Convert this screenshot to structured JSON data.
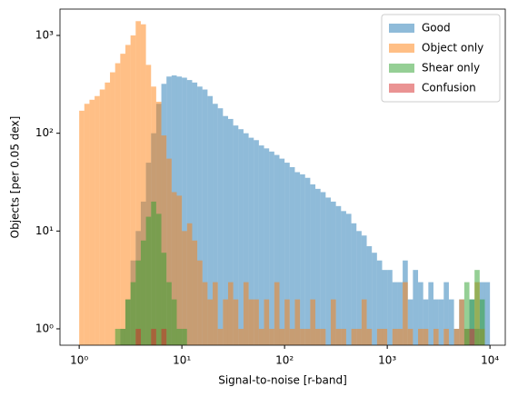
{
  "chart_data": {
    "type": "histogram",
    "xlabel": "Signal-to-noise [r-band]",
    "ylabel": "Objects [per 0.05 dex]",
    "xscale": "log",
    "yscale": "log",
    "xlim": [
      0.65,
      14100
    ],
    "ylim": [
      0.68,
      1860
    ],
    "xticks": [
      {
        "value": 1,
        "label": "10⁰"
      },
      {
        "value": 10,
        "label": "10¹"
      },
      {
        "value": 100,
        "label": "10²"
      },
      {
        "value": 1000,
        "label": "10³"
      },
      {
        "value": 10000,
        "label": "10⁴"
      }
    ],
    "yticks": [
      {
        "value": 1,
        "label": "10⁰"
      },
      {
        "value": 10,
        "label": "10¹"
      },
      {
        "value": 100,
        "label": "10²"
      },
      {
        "value": 1000,
        "label": "10³"
      }
    ],
    "legend": "upper right",
    "opacity": 0.5,
    "bins": [
      1,
      1.122,
      1.259,
      1.413,
      1.585,
      1.778,
      1.995,
      2.239,
      2.512,
      2.818,
      3.162,
      3.548,
      3.981,
      4.467,
      5.012,
      5.623,
      6.31,
      7.079,
      7.943,
      8.913,
      10,
      11.22,
      12.59,
      14.13,
      15.85,
      17.78,
      19.95,
      22.39,
      25.12,
      28.18,
      31.62,
      35.48,
      39.81,
      44.67,
      50.12,
      56.23,
      63.1,
      70.79,
      79.43,
      89.13,
      100,
      112.2,
      125.9,
      141.3,
      158.5,
      177.8,
      199.5,
      223.9,
      251.2,
      281.8,
      316.2,
      354.8,
      398.1,
      446.7,
      501.2,
      562.3,
      631,
      707.9,
      794.3,
      891.3,
      1000,
      1122,
      1259,
      1413,
      1585,
      1778,
      1995,
      2239,
      2512,
      2818,
      3162,
      3548,
      3981,
      4467,
      5012,
      5623,
      6310,
      7079,
      7943,
      8913,
      10000
    ],
    "series": [
      {
        "name": "Good",
        "color": "#1f77b4",
        "values": [
          0,
          0,
          0,
          0,
          0,
          0,
          0,
          0,
          1,
          2,
          5,
          10,
          20,
          50,
          100,
          200,
          320,
          380,
          390,
          380,
          370,
          350,
          330,
          300,
          280,
          240,
          200,
          180,
          150,
          140,
          120,
          110,
          100,
          90,
          85,
          75,
          70,
          65,
          60,
          55,
          50,
          45,
          40,
          38,
          35,
          30,
          27,
          25,
          22,
          20,
          18,
          16,
          15,
          12,
          10,
          9,
          7,
          6,
          5,
          4,
          4,
          3,
          3,
          5,
          2,
          4,
          3,
          2,
          3,
          2,
          2,
          3,
          2,
          1,
          2,
          1,
          2,
          1,
          3,
          3
        ]
      },
      {
        "name": "Object only",
        "color": "#ff7f0e",
        "values": [
          170,
          200,
          220,
          240,
          280,
          330,
          420,
          520,
          650,
          800,
          1000,
          1400,
          1300,
          500,
          300,
          210,
          95,
          55,
          25,
          23,
          10,
          12,
          8,
          5,
          3,
          2,
          3,
          1,
          2,
          3,
          2,
          1,
          3,
          2,
          2,
          1,
          2,
          1,
          3,
          1,
          2,
          1,
          2,
          1,
          1,
          2,
          1,
          1,
          0,
          2,
          1,
          1,
          0,
          1,
          1,
          2,
          1,
          0,
          1,
          1,
          0,
          1,
          1,
          3,
          1,
          0,
          1,
          1,
          0,
          1,
          0,
          1,
          0,
          1,
          2,
          1,
          0,
          3,
          1,
          0
        ]
      },
      {
        "name": "Shear only",
        "color": "#2ca02c",
        "values": [
          0,
          0,
          0,
          0,
          0,
          0,
          0,
          1,
          1,
          2,
          3,
          5,
          8,
          14,
          20,
          15,
          6,
          3,
          2,
          1,
          1,
          0,
          0,
          0,
          0,
          0,
          0,
          0,
          0,
          0,
          0,
          0,
          0,
          0,
          0,
          0,
          0,
          0,
          0,
          0,
          0,
          0,
          0,
          0,
          0,
          0,
          0,
          0,
          0,
          0,
          0,
          0,
          0,
          0,
          0,
          0,
          0,
          0,
          0,
          0,
          0,
          0,
          0,
          0,
          0,
          0,
          0,
          0,
          0,
          0,
          0,
          0,
          0,
          0,
          0,
          3,
          2,
          4,
          2,
          0
        ]
      },
      {
        "name": "Confusion",
        "color": "#d62728",
        "values": [
          0,
          0,
          0,
          0,
          0,
          0,
          0,
          0,
          0,
          0,
          0,
          1,
          0,
          0,
          1,
          0,
          1,
          0,
          0,
          0,
          0,
          0,
          0,
          0,
          0,
          0,
          0,
          0,
          0,
          0,
          0,
          0,
          0,
          0,
          0,
          0,
          0,
          0,
          0,
          0,
          0,
          0,
          0,
          0,
          0,
          0,
          0,
          0,
          0,
          0,
          0,
          0,
          0,
          0,
          0,
          0,
          0,
          0,
          0,
          0,
          0,
          0,
          0,
          0,
          0,
          0,
          0,
          0,
          0,
          0,
          0,
          0,
          0,
          0,
          0,
          0,
          1,
          0,
          0,
          0
        ]
      }
    ]
  }
}
